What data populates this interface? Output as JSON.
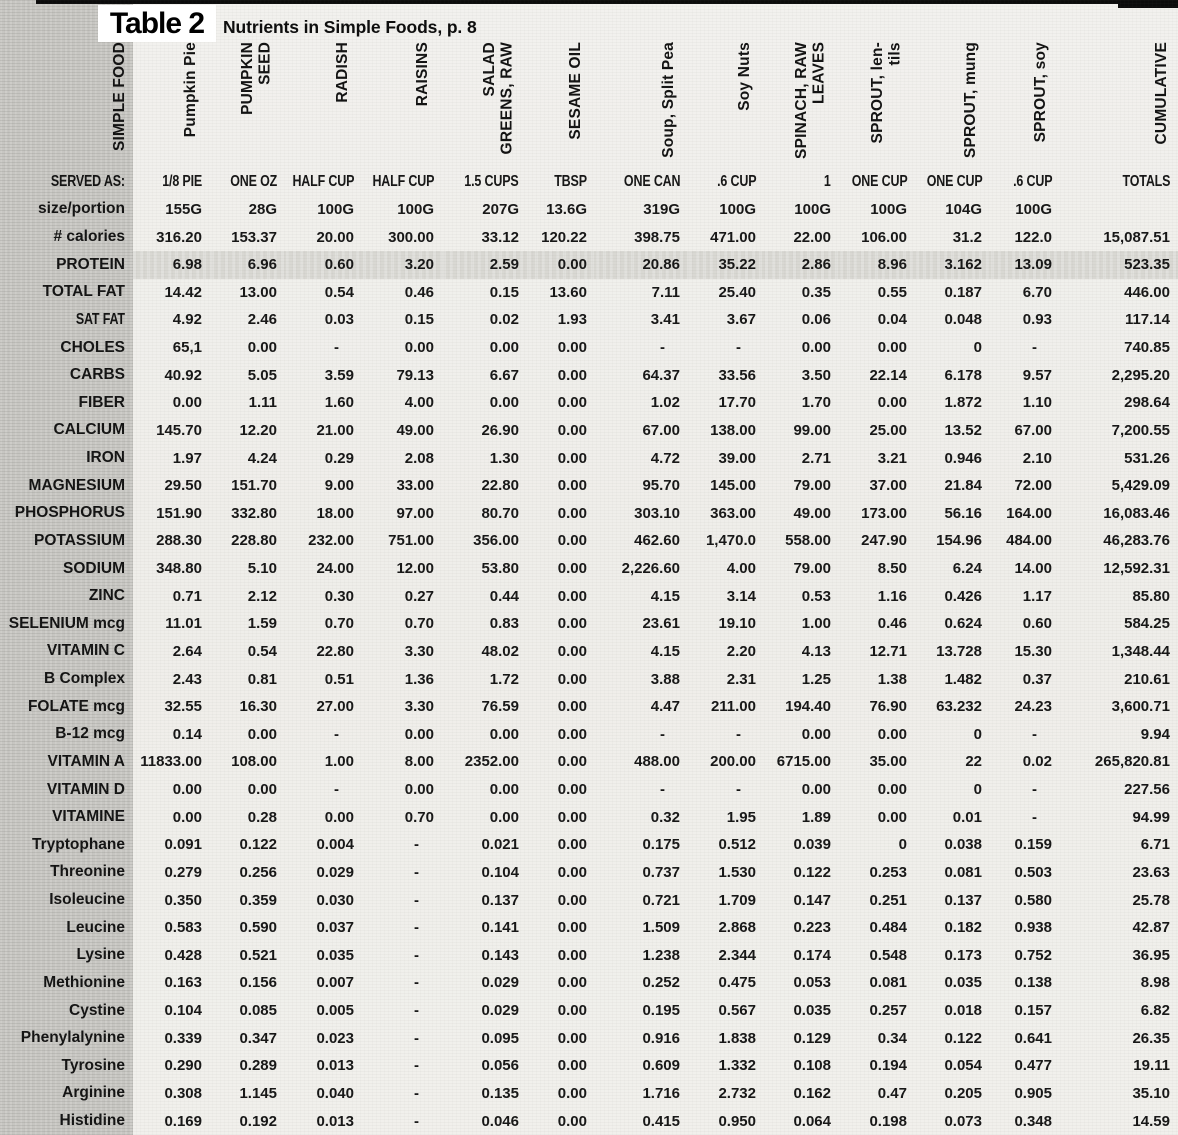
{
  "title": "Table 2",
  "subtitle": "Nutrients in Simple Foods, p. 8",
  "table": {
    "corner_label": "SIMPLE FOOD",
    "columns": [
      "Pumpkin Pie",
      "PUMPKIN\nSEED",
      "RADISH",
      "RAISINS",
      "SALAD\nGREENS, RAW",
      "SESAME OIL",
      "Soup, Split Pea",
      "Soy Nuts",
      "SPINACH, RAW\nLEAVES",
      "SPROUT, len-\ntils",
      "SPROUT, mung",
      "SPROUT, soy",
      "CUMULATIVE"
    ],
    "rows": [
      {
        "label": "SERVED AS:",
        "values": [
          "1/8 PIE",
          "ONE OZ",
          "HALF CUP",
          "HALF CUP",
          "1.5 CUPS",
          "TBSP",
          "ONE CAN",
          ".6 CUP",
          "1",
          "ONE CUP",
          "ONE CUP",
          ".6 CUP",
          "TOTALS"
        ]
      },
      {
        "label": "size/portion",
        "values": [
          "155G",
          "28G",
          "100G",
          "100G",
          "207G",
          "13.6G",
          "319G",
          "100G",
          "100G",
          "100G",
          "104G",
          "100G",
          ""
        ]
      },
      {
        "label": "# calories",
        "values": [
          "316.20",
          "153.37",
          "20.00",
          "300.00",
          "33.12",
          "120.22",
          "398.75",
          "471.00",
          "22.00",
          "106.00",
          "31.2",
          "122.0",
          "15,087.51"
        ]
      },
      {
        "label": "PROTEIN",
        "values": [
          "6.98",
          "6.96",
          "0.60",
          "3.20",
          "2.59",
          "0.00",
          "20.86",
          "35.22",
          "2.86",
          "8.96",
          "3.162",
          "13.09",
          "523.35"
        ]
      },
      {
        "label": "TOTAL FAT",
        "values": [
          "14.42",
          "13.00",
          "0.54",
          "0.46",
          "0.15",
          "13.60",
          "7.11",
          "25.40",
          "0.35",
          "0.55",
          "0.187",
          "6.70",
          "446.00"
        ]
      },
      {
        "label": "SAT FAT",
        "values": [
          "4.92",
          "2.46",
          "0.03",
          "0.15",
          "0.02",
          "1.93",
          "3.41",
          "3.67",
          "0.06",
          "0.04",
          "0.048",
          "0.93",
          "117.14"
        ]
      },
      {
        "label": "CHOLES",
        "values": [
          "65,1",
          "0.00",
          "-",
          "0.00",
          "0.00",
          "0.00",
          "-",
          "-",
          "0.00",
          "0.00",
          "0",
          "-",
          "740.85"
        ]
      },
      {
        "label": "CARBS",
        "values": [
          "40.92",
          "5.05",
          "3.59",
          "79.13",
          "6.67",
          "0.00",
          "64.37",
          "33.56",
          "3.50",
          "22.14",
          "6.178",
          "9.57",
          "2,295.20"
        ]
      },
      {
        "label": "FIBER",
        "values": [
          "0.00",
          "1.11",
          "1.60",
          "4.00",
          "0.00",
          "0.00",
          "1.02",
          "17.70",
          "1.70",
          "0.00",
          "1.872",
          "1.10",
          "298.64"
        ]
      },
      {
        "label": "CALCIUM",
        "values": [
          "145.70",
          "12.20",
          "21.00",
          "49.00",
          "26.90",
          "0.00",
          "67.00",
          "138.00",
          "99.00",
          "25.00",
          "13.52",
          "67.00",
          "7,200.55"
        ]
      },
      {
        "label": "IRON",
        "values": [
          "1.97",
          "4.24",
          "0.29",
          "2.08",
          "1.30",
          "0.00",
          "4.72",
          "39.00",
          "2.71",
          "3.21",
          "0.946",
          "2.10",
          "531.26"
        ]
      },
      {
        "label": "MAGNESIUM",
        "values": [
          "29.50",
          "151.70",
          "9.00",
          "33.00",
          "22.80",
          "0.00",
          "95.70",
          "145.00",
          "79.00",
          "37.00",
          "21.84",
          "72.00",
          "5,429.09"
        ]
      },
      {
        "label": "PHOSPHORUS",
        "values": [
          "151.90",
          "332.80",
          "18.00",
          "97.00",
          "80.70",
          "0.00",
          "303.10",
          "363.00",
          "49.00",
          "173.00",
          "56.16",
          "164.00",
          "16,083.46"
        ]
      },
      {
        "label": "POTASSIUM",
        "values": [
          "288.30",
          "228.80",
          "232.00",
          "751.00",
          "356.00",
          "0.00",
          "462.60",
          "1,470.0",
          "558.00",
          "247.90",
          "154.96",
          "484.00",
          "46,283.76"
        ]
      },
      {
        "label": "SODIUM",
        "values": [
          "348.80",
          "5.10",
          "24.00",
          "12.00",
          "53.80",
          "0.00",
          "2,226.60",
          "4.00",
          "79.00",
          "8.50",
          "6.24",
          "14.00",
          "12,592.31"
        ]
      },
      {
        "label": "ZINC",
        "values": [
          "0.71",
          "2.12",
          "0.30",
          "0.27",
          "0.44",
          "0.00",
          "4.15",
          "3.14",
          "0.53",
          "1.16",
          "0.426",
          "1.17",
          "85.80"
        ]
      },
      {
        "label": "SELENIUM mcg",
        "values": [
          "11.01",
          "1.59",
          "0.70",
          "0.70",
          "0.83",
          "0.00",
          "23.61",
          "19.10",
          "1.00",
          "0.46",
          "0.624",
          "0.60",
          "584.25"
        ]
      },
      {
        "label": "VITAMIN C",
        "values": [
          "2.64",
          "0.54",
          "22.80",
          "3.30",
          "48.02",
          "0.00",
          "4.15",
          "2.20",
          "4.13",
          "12.71",
          "13.728",
          "15.30",
          "1,348.44"
        ]
      },
      {
        "label": "B Complex",
        "values": [
          "2.43",
          "0.81",
          "0.51",
          "1.36",
          "1.72",
          "0.00",
          "3.88",
          "2.31",
          "1.25",
          "1.38",
          "1.482",
          "0.37",
          "210.61"
        ]
      },
      {
        "label": "FOLATE mcg",
        "values": [
          "32.55",
          "16.30",
          "27.00",
          "3.30",
          "76.59",
          "0.00",
          "4.47",
          "211.00",
          "194.40",
          "76.90",
          "63.232",
          "24.23",
          "3,600.71"
        ]
      },
      {
        "label": "B-12 mcg",
        "values": [
          "0.14",
          "0.00",
          "-",
          "0.00",
          "0.00",
          "0.00",
          "-",
          "-",
          "0.00",
          "0.00",
          "0",
          "-",
          "9.94"
        ]
      },
      {
        "label": "VITAMIN A",
        "values": [
          "11833.00",
          "108.00",
          "1.00",
          "8.00",
          "2352.00",
          "0.00",
          "488.00",
          "200.00",
          "6715.00",
          "35.00",
          "22",
          "0.02",
          "265,820.81"
        ]
      },
      {
        "label": "VITAMIN D",
        "values": [
          "0.00",
          "0.00",
          "-",
          "0.00",
          "0.00",
          "0.00",
          "-",
          "-",
          "0.00",
          "0.00",
          "0",
          "-",
          "227.56"
        ]
      },
      {
        "label": "VITAMINE",
        "values": [
          "0.00",
          "0.28",
          "0.00",
          "0.70",
          "0.00",
          "0.00",
          "0.32",
          "1.95",
          "1.89",
          "0.00",
          "0.01",
          "-",
          "94.99"
        ]
      },
      {
        "label": "Tryptophane",
        "values": [
          "0.091",
          "0.122",
          "0.004",
          "-",
          "0.021",
          "0.00",
          "0.175",
          "0.512",
          "0.039",
          "0",
          "0.038",
          "0.159",
          "6.71"
        ]
      },
      {
        "label": "Threonine",
        "values": [
          "0.279",
          "0.256",
          "0.029",
          "-",
          "0.104",
          "0.00",
          "0.737",
          "1.530",
          "0.122",
          "0.253",
          "0.081",
          "0.503",
          "23.63"
        ]
      },
      {
        "label": "Isoleucine",
        "values": [
          "0.350",
          "0.359",
          "0.030",
          "-",
          "0.137",
          "0.00",
          "0.721",
          "1.709",
          "0.147",
          "0.251",
          "0.137",
          "0.580",
          "25.78"
        ]
      },
      {
        "label": "Leucine",
        "values": [
          "0.583",
          "0.590",
          "0.037",
          "-",
          "0.141",
          "0.00",
          "1.509",
          "2.868",
          "0.223",
          "0.484",
          "0.182",
          "0.938",
          "42.87"
        ]
      },
      {
        "label": "Lysine",
        "values": [
          "0.428",
          "0.521",
          "0.035",
          "-",
          "0.143",
          "0.00",
          "1.238",
          "2.344",
          "0.174",
          "0.548",
          "0.173",
          "0.752",
          "36.95"
        ]
      },
      {
        "label": "Methionine",
        "values": [
          "0.163",
          "0.156",
          "0.007",
          "-",
          "0.029",
          "0.00",
          "0.252",
          "0.475",
          "0.053",
          "0.081",
          "0.035",
          "0.138",
          "8.98"
        ]
      },
      {
        "label": "Cystine",
        "values": [
          "0.104",
          "0.085",
          "0.005",
          "-",
          "0.029",
          "0.00",
          "0.195",
          "0.567",
          "0.035",
          "0.257",
          "0.018",
          "0.157",
          "6.82"
        ]
      },
      {
        "label": "Phenylalynine",
        "values": [
          "0.339",
          "0.347",
          "0.023",
          "-",
          "0.095",
          "0.00",
          "0.916",
          "1.838",
          "0.129",
          "0.34",
          "0.122",
          "0.641",
          "26.35"
        ]
      },
      {
        "label": "Tyrosine",
        "values": [
          "0.290",
          "0.289",
          "0.013",
          "-",
          "0.056",
          "0.00",
          "0.609",
          "1.332",
          "0.108",
          "0.194",
          "0.054",
          "0.477",
          "19.11"
        ]
      },
      {
        "label": "Arginine",
        "values": [
          "0.308",
          "1.145",
          "0.040",
          "-",
          "0.135",
          "0.00",
          "1.716",
          "2.732",
          "0.162",
          "0.47",
          "0.205",
          "0.905",
          "35.10"
        ]
      },
      {
        "label": "Histidine",
        "values": [
          "0.169",
          "0.192",
          "0.013",
          "-",
          "0.046",
          "0.00",
          "0.415",
          "0.950",
          "0.064",
          "0.198",
          "0.073",
          "0.348",
          "14.59"
        ]
      }
    ]
  },
  "colors": {
    "page_background": "#f1f0ec",
    "label_column": "#c7c6c2",
    "highlight_band": "#d9d8d3",
    "text": "#121212",
    "scan_edge": "#0b0b0b"
  }
}
